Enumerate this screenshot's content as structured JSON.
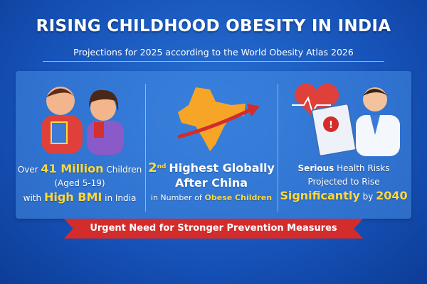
{
  "title": "RISING CHILDHOOD OBESITY IN INDIA",
  "subtitle": "Projections for 2025 according to the World Obesity Atlas 2026",
  "col1": {
    "a": "Over",
    "b": "41 Million",
    "c": "Children",
    "d": "(Aged 5-19)",
    "e": "with",
    "f": "High BMI",
    "g": "in India"
  },
  "col2": {
    "a": "2",
    "sup": "nd",
    "b": "Highest Globally",
    "c": "After China",
    "d": "in Number of",
    "e": "Obese Children"
  },
  "col3": {
    "a": "Serious",
    "b": "Health Risks",
    "c": "Projected to Rise",
    "d": "Significantly",
    "e": "by",
    "f": "2040"
  },
  "banner": "Urgent Need for Stronger Prevention Measures",
  "colors": {
    "accent": "#ffd93b",
    "banner": "#d42b2b"
  }
}
